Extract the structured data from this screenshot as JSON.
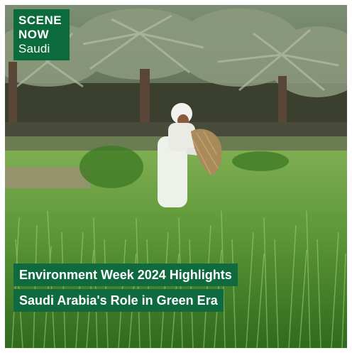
{
  "logo": {
    "line1": "SCENE",
    "line2": "NOW",
    "line3": "Saudi"
  },
  "headline": {
    "line1": "Environment Week 2024 Highlights",
    "line2": "Saudi Arabia's Role in Green Era"
  },
  "colors": {
    "brand_green": "#0b6b3d",
    "banner_green": "#0f6a3f",
    "text": "#ffffff",
    "grass": "#4c8a2e"
  }
}
